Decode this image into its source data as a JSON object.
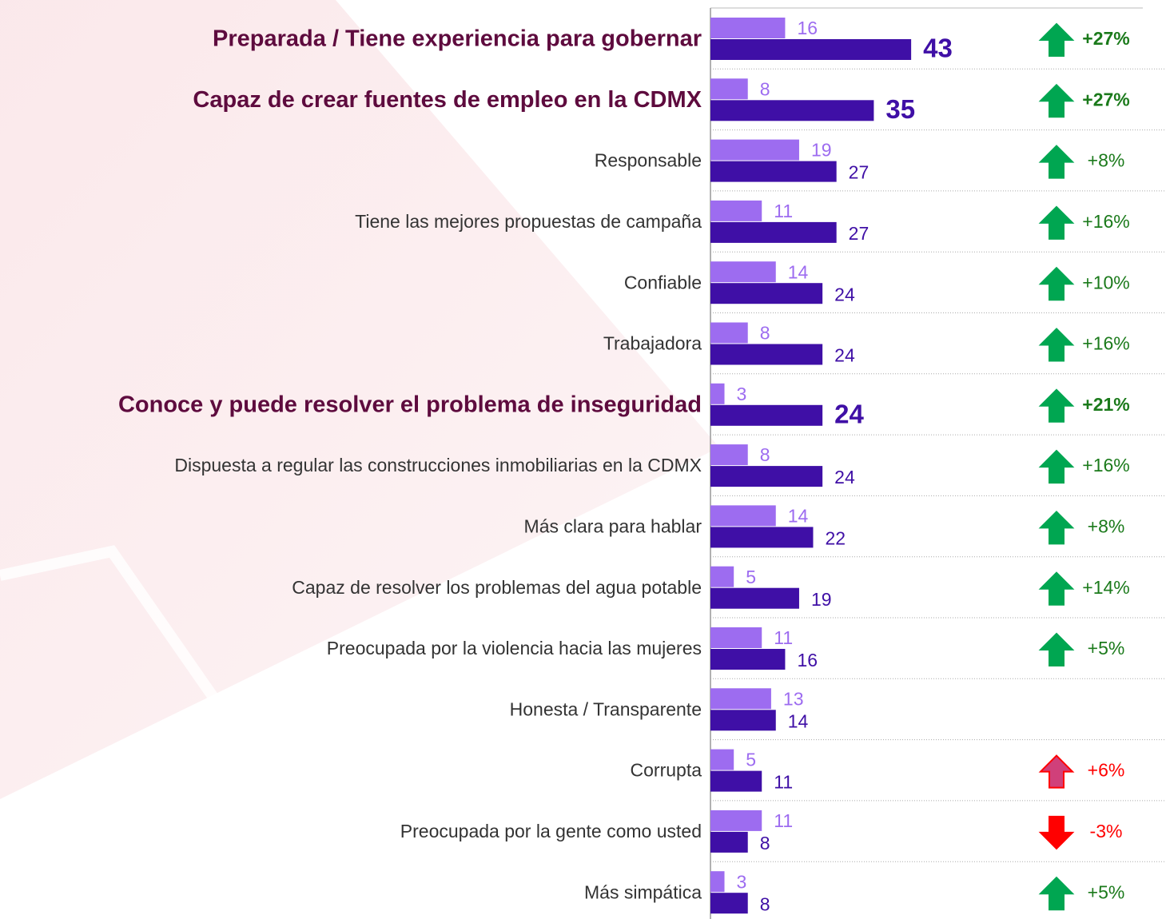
{
  "chart_data": {
    "type": "bar",
    "categories": [
      "Preparada / Tiene experiencia para gobernar",
      "Capaz de crear fuentes de empleo en la CDMX",
      "Responsable",
      "Tiene las mejores propuestas de campaña",
      "Confiable",
      "Trabajadora",
      "Conoce y puede resolver el problema de inseguridad",
      "Dispuesta a regular las construcciones inmobiliarias en la CDMX",
      "Más clara para hablar",
      "Capaz de resolver los problemas del agua potable",
      "Preocupada por la violencia hacia las mujeres",
      "Honesta / Transparente",
      "Corrupta",
      "Preocupada por la gente como usted",
      "Más simpática"
    ],
    "series": [
      {
        "color": "#9d6cf0",
        "values": [
          16,
          8,
          19,
          11,
          14,
          8,
          3,
          8,
          14,
          5,
          11,
          13,
          5,
          11,
          3
        ]
      },
      {
        "color": "#3f0fa6",
        "values": [
          43,
          35,
          27,
          27,
          24,
          24,
          24,
          24,
          22,
          19,
          16,
          14,
          11,
          8,
          8
        ]
      }
    ],
    "highlight_rows": [
      0,
      1,
      6
    ],
    "changes": {
      "values": [
        27,
        27,
        8,
        16,
        10,
        16,
        21,
        16,
        8,
        14,
        5,
        null,
        6,
        -3,
        5
      ],
      "value_labels": [
        "+27%",
        "+27%",
        "+8%",
        "+16%",
        "+10%",
        "+16%",
        "+21%",
        "+16%",
        "+8%",
        "+14%",
        "+5%",
        null,
        "+6%",
        "-3%",
        "+5%"
      ],
      "colors": [
        "#00a651",
        "#00a651",
        "#00a651",
        "#00a651",
        "#00a651",
        "#00a651",
        "#00a651",
        "#00a651",
        "#00a651",
        "#00a651",
        "#00a651",
        null,
        "#ff0000",
        "#ff0000",
        "#00a651"
      ]
    }
  }
}
